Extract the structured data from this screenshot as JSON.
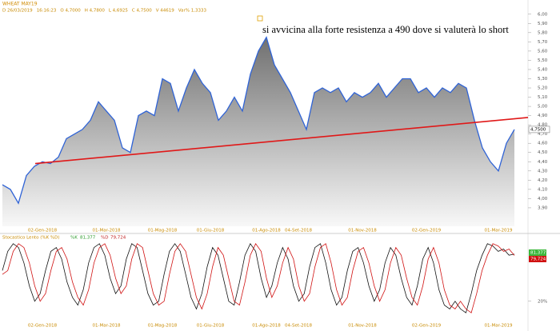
{
  "header": {
    "symbol": "WHEAT MAY19",
    "items": [
      "D 26/03/2019",
      "16:16:23",
      "O 4,7000",
      "H 4,7800",
      "L 4,6925",
      "C 4,7500",
      "V 44619",
      "Var% 1,3333"
    ]
  },
  "chart_data": [
    {
      "type": "area",
      "annotation": "si avvicina alla forte resistenza a 490 dove si valuterà lo short",
      "last_price_label": "4,7500",
      "categories": [
        null,
        null,
        null,
        null,
        null,
        "02-Gen-2018",
        null,
        null,
        null,
        null,
        null,
        null,
        null,
        "01-Mar-2018",
        null,
        null,
        null,
        null,
        null,
        null,
        "01-Mag-2018",
        null,
        null,
        null,
        null,
        null,
        "01-Giu-2018",
        null,
        null,
        null,
        null,
        null,
        null,
        "01-Ago-2018",
        null,
        null,
        null,
        "04-Set-2018",
        null,
        null,
        null,
        null,
        null,
        null,
        null,
        "01-Nov-2018",
        null,
        null,
        null,
        null,
        null,
        null,
        null,
        "02-Gen-2019",
        null,
        null,
        null,
        null,
        null,
        null,
        null,
        null,
        "01-Mar-2019",
        null,
        null
      ],
      "series": [
        {
          "name": "WHEAT MAY19",
          "color": "#2f63d6",
          "values": [
            4.15,
            4.1,
            3.95,
            4.25,
            4.35,
            4.4,
            4.38,
            4.45,
            4.65,
            4.7,
            4.75,
            4.85,
            5.05,
            4.95,
            4.85,
            4.55,
            4.5,
            4.9,
            4.95,
            4.9,
            5.3,
            5.25,
            4.95,
            5.2,
            5.4,
            5.25,
            5.15,
            4.85,
            4.95,
            5.1,
            4.95,
            5.35,
            5.6,
            5.75,
            5.45,
            5.3,
            5.15,
            4.95,
            4.75,
            5.15,
            5.2,
            5.15,
            5.2,
            5.05,
            5.15,
            5.1,
            5.15,
            5.25,
            5.1,
            5.2,
            5.3,
            5.3,
            5.15,
            5.2,
            5.1,
            5.2,
            5.15,
            5.25,
            5.2,
            4.85,
            4.55,
            4.4,
            4.3,
            4.6,
            4.75
          ]
        }
      ],
      "trendline": {
        "color": "#e01818",
        "x": [
          4.1,
          65.7
        ],
        "values": [
          4.38,
          4.88
        ]
      },
      "ylim": [
        3.7,
        6.05
      ],
      "yticks": [
        {
          "value": 3.9,
          "label": "3,90"
        },
        {
          "value": 4.0,
          "label": "4,00"
        },
        {
          "value": 4.1,
          "label": "4,10"
        },
        {
          "value": 4.2,
          "label": "4,20"
        },
        {
          "value": 4.3,
          "label": "4,30"
        },
        {
          "value": 4.4,
          "label": "4,40"
        },
        {
          "value": 4.5,
          "label": "4,50"
        },
        {
          "value": 4.6,
          "label": "4,60"
        },
        {
          "value": 4.7,
          "label": "4,70"
        },
        {
          "value": 4.8,
          "label": "4,80"
        },
        {
          "value": 4.9,
          "label": "4,90"
        },
        {
          "value": 5.0,
          "label": "5,00"
        },
        {
          "value": 5.1,
          "label": "5,10"
        },
        {
          "value": 5.2,
          "label": "5,20"
        },
        {
          "value": 5.3,
          "label": "5,30"
        },
        {
          "value": 5.4,
          "label": "5,40"
        },
        {
          "value": 5.5,
          "label": "5,50"
        },
        {
          "value": 5.6,
          "label": "5,60"
        },
        {
          "value": 5.7,
          "label": "5,70"
        },
        {
          "value": 5.8,
          "label": "5,80"
        },
        {
          "value": 5.9,
          "label": "5,90"
        },
        {
          "value": 6.0,
          "label": "6,00"
        }
      ]
    },
    {
      "type": "line",
      "title": "Stocastico Lento (%K %D)",
      "k_label": "81,377",
      "d_label": "79,724",
      "series": [
        {
          "name": "%K",
          "color": "#111111",
          "values": [
            60,
            85,
            95,
            90,
            70,
            40,
            20,
            30,
            60,
            85,
            90,
            75,
            45,
            25,
            15,
            35,
            70,
            90,
            95,
            80,
            50,
            30,
            40,
            75,
            95,
            90,
            60,
            30,
            15,
            20,
            55,
            85,
            95,
            85,
            55,
            25,
            10,
            30,
            65,
            90,
            80,
            50,
            20,
            15,
            45,
            80,
            95,
            85,
            50,
            25,
            40,
            70,
            90,
            75,
            40,
            20,
            30,
            65,
            90,
            95,
            70,
            35,
            15,
            25,
            60,
            85,
            90,
            70,
            40,
            20,
            35,
            70,
            90,
            80,
            50,
            25,
            15,
            40,
            75,
            90,
            70,
            35,
            15,
            10,
            20,
            10,
            5,
            30,
            60,
            80,
            95,
            92,
            85,
            88,
            80,
            81.377
          ]
        },
        {
          "name": "%D",
          "color": "#d01010",
          "values": [
            55,
            60,
            85,
            95,
            90,
            70,
            40,
            20,
            30,
            60,
            85,
            90,
            75,
            45,
            25,
            15,
            35,
            70,
            90,
            95,
            80,
            50,
            30,
            40,
            75,
            95,
            90,
            60,
            30,
            15,
            20,
            55,
            85,
            95,
            85,
            55,
            25,
            10,
            30,
            65,
            90,
            80,
            50,
            20,
            15,
            45,
            80,
            95,
            85,
            50,
            25,
            40,
            70,
            90,
            75,
            40,
            20,
            30,
            65,
            90,
            95,
            70,
            35,
            15,
            25,
            60,
            85,
            90,
            70,
            40,
            20,
            35,
            70,
            90,
            80,
            50,
            25,
            15,
            40,
            75,
            90,
            70,
            35,
            15,
            10,
            20,
            10,
            5,
            30,
            60,
            80,
            95,
            92,
            85,
            88,
            79.724
          ]
        }
      ],
      "ylim": [
        0,
        100
      ],
      "yticks": [
        {
          "value": 20,
          "label": "20%"
        }
      ]
    }
  ]
}
